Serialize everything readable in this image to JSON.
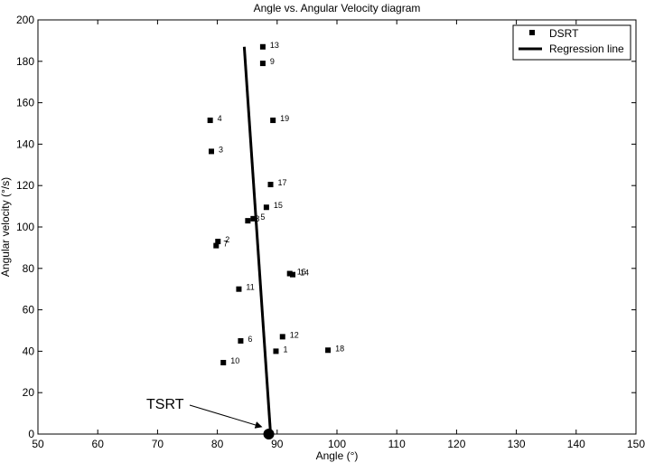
{
  "chart_data": {
    "type": "scatter",
    "title": "Angle vs. Angular Velocity diagram",
    "xlabel": "Angle (°)",
    "ylabel": "Angular velocity (°/s)",
    "xlim": [
      50,
      150
    ],
    "ylim": [
      0,
      200
    ],
    "xticks": [
      50,
      60,
      70,
      80,
      90,
      100,
      110,
      120,
      130,
      140,
      150
    ],
    "yticks": [
      0,
      20,
      40,
      60,
      80,
      100,
      120,
      140,
      160,
      180,
      200
    ],
    "grid": false,
    "legend_position": "top-right",
    "series": [
      {
        "name": "DSRT",
        "marker": "square",
        "color": "#000000",
        "points": [
          {
            "label": "1",
            "x": 89.8,
            "y": 40
          },
          {
            "label": "2",
            "x": 80.1,
            "y": 93
          },
          {
            "label": "3",
            "x": 79.0,
            "y": 136.5
          },
          {
            "label": "4",
            "x": 78.8,
            "y": 151.5
          },
          {
            "label": "5",
            "x": 86.0,
            "y": 104
          },
          {
            "label": "6",
            "x": 83.9,
            "y": 45
          },
          {
            "label": "7",
            "x": 79.8,
            "y": 91
          },
          {
            "label": "8",
            "x": 85.1,
            "y": 103
          },
          {
            "label": "9",
            "x": 87.6,
            "y": 179
          },
          {
            "label": "10",
            "x": 81.0,
            "y": 34.5
          },
          {
            "label": "11",
            "x": 83.6,
            "y": 70
          },
          {
            "label": "12",
            "x": 90.9,
            "y": 47
          },
          {
            "label": "13",
            "x": 87.6,
            "y": 187
          },
          {
            "label": "14",
            "x": 92.6,
            "y": 77
          },
          {
            "label": "15",
            "x": 88.2,
            "y": 109.5
          },
          {
            "label": "16",
            "x": 92.1,
            "y": 77.5
          },
          {
            "label": "17",
            "x": 88.9,
            "y": 120.5
          },
          {
            "label": "18",
            "x": 98.5,
            "y": 40.5
          },
          {
            "label": "19",
            "x": 89.3,
            "y": 151.5
          }
        ]
      },
      {
        "name": "Regression line",
        "type": "line",
        "color": "#000000",
        "x": [
          84.5,
          88.9
        ],
        "y": [
          187,
          0
        ]
      }
    ],
    "annotations": [
      {
        "text": "TSRT",
        "x": 88.6,
        "y": 0,
        "marker": "filled-circle",
        "arrow": true
      }
    ]
  }
}
